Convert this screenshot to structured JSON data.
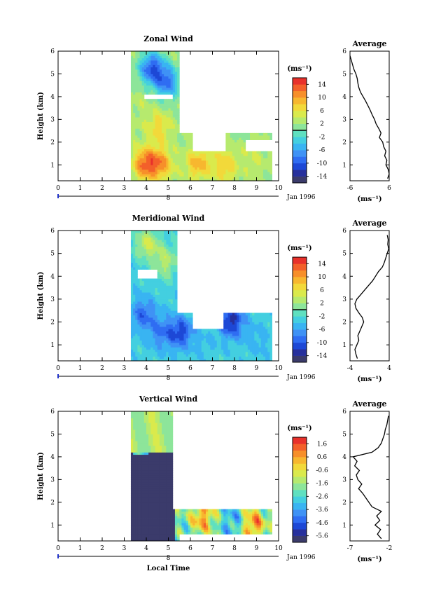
{
  "chart_data": [
    {
      "type": "heatmap",
      "title": "Zonal Wind",
      "ylabel": "Height (km)",
      "xlim": [
        0,
        10
      ],
      "ylim": [
        0.3,
        6
      ],
      "xticks": [
        "0",
        "1",
        "2",
        "3",
        "4",
        "5",
        "6",
        "7",
        "8",
        "9",
        "10"
      ],
      "yticks": [
        "1",
        "2",
        "3",
        "4",
        "5",
        "6"
      ],
      "date_axis_label": "Jan 1996",
      "date_marker": "8",
      "colorbar": {
        "unit": "(ms⁻¹)",
        "ticks": [
          "14",
          "10",
          "6",
          "2",
          "-2",
          "-6",
          "-10",
          "-14"
        ],
        "range": [
          -16,
          16
        ],
        "zero_line": 0
      },
      "field_model": {
        "data_start_time": 3.3,
        "data_end_time": 9.7,
        "blobs": [
          {
            "t": 3.9,
            "z": 1.0,
            "v": 12
          },
          {
            "t": 4.6,
            "z": 1.0,
            "v": 10
          },
          {
            "t": 4.5,
            "z": 2.6,
            "v": 7
          },
          {
            "t": 3.7,
            "z": 3.6,
            "v": 3
          },
          {
            "t": 4.2,
            "z": 5.2,
            "v": -10
          },
          {
            "t": 4.9,
            "z": 4.6,
            "v": -8
          },
          {
            "t": 6.3,
            "z": 1.0,
            "v": 9
          },
          {
            "t": 7.5,
            "z": 0.9,
            "v": 8
          },
          {
            "t": 8.8,
            "z": 1.2,
            "v": 4
          },
          {
            "t": 8.0,
            "z": 3.5,
            "v": -9
          }
        ],
        "base": 2
      },
      "gaps": [
        {
          "t0": 5.4,
          "t1": 10.0,
          "z0": 2.4,
          "z1": 6.0
        },
        {
          "t0": 6.0,
          "t1": 7.5,
          "z0": 1.6,
          "z1": 2.4
        },
        {
          "t0": 3.9,
          "t1": 5.1,
          "z0": 3.9,
          "z1": 4.1
        },
        {
          "t0": 8.4,
          "t1": 9.7,
          "z0": 1.6,
          "z1": 2.1
        }
      ],
      "profile": {
        "title": "Average",
        "xlim": [
          -6,
          6
        ],
        "xticks": [
          "-6",
          "6"
        ],
        "xlabel": "(ms⁻¹)",
        "z": [
          0.4,
          0.6,
          0.8,
          1.0,
          1.2,
          1.4,
          1.6,
          1.8,
          2.0,
          2.2,
          2.4,
          2.6,
          2.8,
          3.0,
          3.2,
          3.4,
          3.6,
          3.8,
          4.0,
          4.2,
          4.4,
          4.6,
          4.8,
          5.0,
          5.2,
          5.4,
          5.6,
          5.8
        ],
        "v": [
          5.5,
          6.0,
          5.7,
          5.0,
          5.3,
          4.6,
          5.0,
          4.3,
          4.0,
          3.0,
          3.5,
          2.8,
          2.0,
          1.5,
          0.8,
          0.2,
          -0.5,
          -1.2,
          -2.0,
          -2.8,
          -3.3,
          -3.6,
          -3.8,
          -4.2,
          -4.8,
          -5.2,
          -5.6,
          -6.0
        ]
      }
    },
    {
      "type": "heatmap",
      "title": "Meridional Wind",
      "ylabel": "Height (km)",
      "xlim": [
        0,
        10
      ],
      "ylim": [
        0.3,
        6
      ],
      "xticks": [
        "0",
        "1",
        "2",
        "3",
        "4",
        "5",
        "6",
        "7",
        "8",
        "9",
        "10"
      ],
      "yticks": [
        "1",
        "2",
        "3",
        "4",
        "5",
        "6"
      ],
      "date_axis_label": "Jan 1996",
      "date_marker": "8",
      "colorbar": {
        "unit": "(ms⁻¹)",
        "ticks": [
          "14",
          "10",
          "6",
          "2",
          "-2",
          "-6",
          "-10",
          "-14"
        ],
        "range": [
          -16,
          16
        ],
        "zero_line": 0
      },
      "field_model": {
        "data_start_time": 3.3,
        "data_end_time": 9.7,
        "blobs": [
          {
            "t": 4.0,
            "z": 5.4,
            "v": 4
          },
          {
            "t": 4.8,
            "z": 4.6,
            "v": 3
          },
          {
            "t": 3.8,
            "z": 2.3,
            "v": -9
          },
          {
            "t": 4.6,
            "z": 1.5,
            "v": -8
          },
          {
            "t": 5.5,
            "z": 1.5,
            "v": -11
          },
          {
            "t": 7.8,
            "z": 2.0,
            "v": -13
          },
          {
            "t": 6.6,
            "z": 1.0,
            "v": -4
          },
          {
            "t": 9.0,
            "z": 1.2,
            "v": -5
          },
          {
            "t": 4.3,
            "z": 3.2,
            "v": -3
          }
        ],
        "base": -3
      },
      "gaps": [
        {
          "t0": 5.3,
          "t1": 10.0,
          "z0": 2.4,
          "z1": 6.0
        },
        {
          "t0": 6.0,
          "t1": 7.4,
          "z0": 1.7,
          "z1": 2.4
        },
        {
          "t0": 3.6,
          "t1": 4.4,
          "z0": 3.9,
          "z1": 4.3
        },
        {
          "t0": 8.2,
          "t1": 9.6,
          "z0": 4.7,
          "z1": 6.0
        }
      ],
      "profile": {
        "title": "Average",
        "xlim": [
          -4,
          4
        ],
        "xticks": [
          "-4",
          "4"
        ],
        "xlabel": "(ms⁻¹)",
        "z": [
          0.4,
          0.6,
          0.8,
          1.0,
          1.2,
          1.4,
          1.6,
          1.8,
          2.0,
          2.2,
          2.4,
          2.6,
          2.8,
          3.0,
          3.2,
          3.4,
          3.6,
          3.8,
          4.0,
          4.2,
          4.4,
          4.6,
          4.8,
          5.0,
          5.2,
          5.4,
          5.6,
          5.8
        ],
        "v": [
          -2.5,
          -2.8,
          -3.0,
          -2.6,
          -2.2,
          -2.4,
          -2.0,
          -1.6,
          -1.2,
          -1.5,
          -2.2,
          -2.8,
          -3.0,
          -2.6,
          -1.8,
          -1.0,
          -0.2,
          0.6,
          1.2,
          1.8,
          2.6,
          3.0,
          3.3,
          3.6,
          3.9,
          3.7,
          3.8,
          3.6
        ]
      }
    },
    {
      "type": "heatmap",
      "title": "Vertical Wind",
      "ylabel": "Height (km)",
      "xlabel": "Local Time",
      "xlim": [
        0,
        10
      ],
      "ylim": [
        0.3,
        6
      ],
      "xticks": [
        "0",
        "1",
        "2",
        "3",
        "4",
        "5",
        "6",
        "7",
        "8",
        "9",
        "10"
      ],
      "yticks": [
        "1",
        "2",
        "3",
        "4",
        "5",
        "6"
      ],
      "date_axis_label": "Jan 1996",
      "date_marker": "8",
      "colorbar": {
        "unit": "(ms⁻¹)",
        "ticks": [
          "1.6",
          "0.6",
          "-0.6",
          "-1.6",
          "-2.6",
          "-3.6",
          "-4.6",
          "-5.6"
        ],
        "range": [
          -6.1,
          2.1
        ]
      },
      "field_model": {
        "data_start_time": 3.3,
        "data_end_time": 9.7,
        "blobs": [
          {
            "t": 3.8,
            "z": 5.6,
            "v": -0.4
          },
          {
            "t": 4.5,
            "z": 5.3,
            "v": -1.4
          },
          {
            "t": 6.5,
            "z": 1.3,
            "v": 0.6
          },
          {
            "t": 8.8,
            "z": 1.0,
            "v": 0.9
          },
          {
            "t": 7.9,
            "z": 1.1,
            "v": -3.4
          }
        ],
        "base": -2.2
      },
      "gaps": [
        {
          "t0": 5.1,
          "t1": 10.0,
          "z0": 1.7,
          "z1": 6.0
        },
        {
          "t0": 5.4,
          "t1": 10.0,
          "z0": 0.3,
          "z1": 0.6
        }
      ],
      "profile": {
        "title": "Average",
        "xlim": [
          -7,
          -2
        ],
        "xticks": [
          "-7",
          "-2"
        ],
        "xlabel": "(ms⁻¹)",
        "z": [
          0.4,
          0.6,
          0.8,
          1.0,
          1.2,
          1.4,
          1.6,
          1.8,
          2.0,
          2.2,
          2.4,
          2.6,
          2.8,
          3.0,
          3.2,
          3.4,
          3.6,
          3.8,
          4.0,
          4.2,
          4.4,
          4.6,
          4.8,
          5.0,
          5.2,
          5.4,
          5.6,
          5.8
        ],
        "v": [
          -3.0,
          -3.5,
          -3.1,
          -3.8,
          -3.2,
          -3.6,
          -3.0,
          -4.2,
          -4.6,
          -5.0,
          -5.4,
          -5.9,
          -5.5,
          -6.0,
          -6.2,
          -5.8,
          -6.4,
          -6.1,
          -6.6,
          -4.2,
          -3.4,
          -3.0,
          -2.8,
          -2.6,
          -2.5,
          -2.3,
          -2.2,
          -2.1
        ]
      }
    }
  ]
}
